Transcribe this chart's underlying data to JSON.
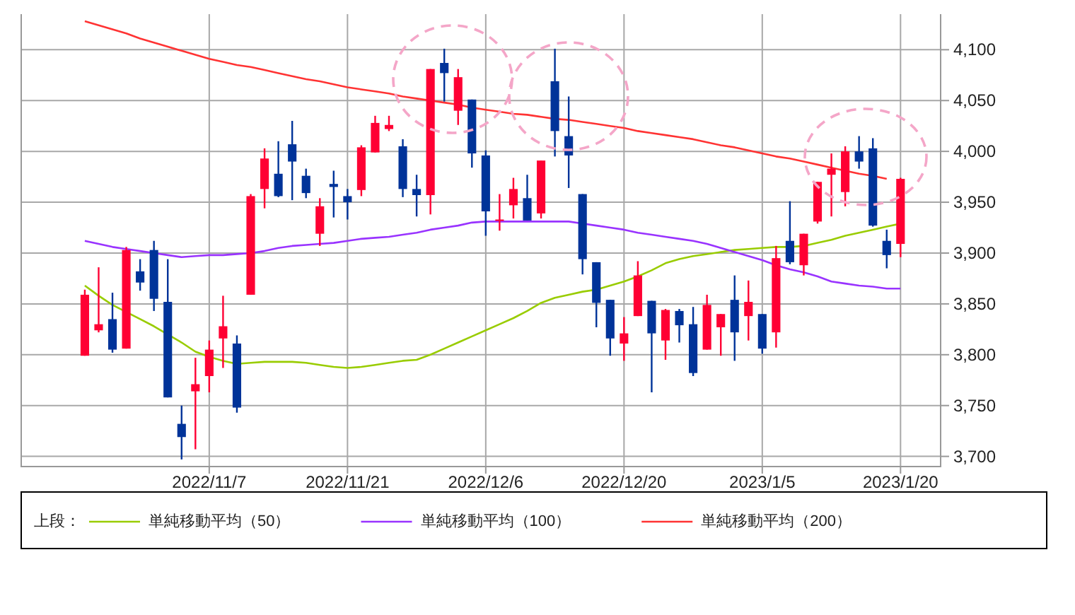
{
  "chart_data": {
    "type": "candlestick",
    "categories": [
      null,
      null,
      null,
      null,
      null,
      null,
      null,
      null,
      null,
      "2022/11/7",
      null,
      null,
      null,
      null,
      null,
      null,
      null,
      null,
      null,
      "2022/11/21",
      null,
      null,
      null,
      null,
      null,
      null,
      null,
      null,
      null,
      "2022/12/6",
      null,
      null,
      null,
      null,
      null,
      null,
      null,
      null,
      null,
      "2022/12/20",
      null,
      null,
      null,
      null,
      null,
      null,
      null,
      null,
      null,
      "2023/1/5",
      null,
      null,
      null,
      null,
      null,
      null,
      null,
      null,
      null,
      "2023/1/20"
    ],
    "ohlc": [
      [
        3799,
        3864,
        3799,
        3859
      ],
      [
        3824,
        3886,
        3822,
        3830
      ],
      [
        3835,
        3861,
        3802,
        3805
      ],
      [
        3806,
        3906,
        3806,
        3903
      ],
      [
        3882,
        3894,
        3863,
        3871
      ],
      [
        3903,
        3912,
        3843,
        3855
      ],
      [
        3852,
        3894,
        3758,
        3758
      ],
      [
        3732,
        3750,
        3697,
        3719
      ],
      [
        3764,
        3797,
        3707,
        3771
      ],
      [
        3779,
        3814,
        3763,
        3805
      ],
      [
        3816,
        3858,
        3787,
        3828
      ],
      [
        3811,
        3819,
        3743,
        3748
      ],
      [
        3859,
        3958,
        3859,
        3956
      ],
      [
        3963,
        4003,
        3944,
        3993
      ],
      [
        3978,
        4010,
        3955,
        3956
      ],
      [
        4007,
        4030,
        3952,
        3990
      ],
      [
        3976,
        3983,
        3954,
        3959
      ],
      [
        3919,
        3954,
        3907,
        3946
      ],
      [
        3968,
        3981,
        3935,
        3965
      ],
      [
        3956,
        3963,
        3933,
        3950
      ],
      [
        3962,
        4006,
        3956,
        4004
      ],
      [
        3999,
        4035,
        3999,
        4028
      ],
      [
        4022,
        4035,
        4020,
        4026
      ],
      [
        4005,
        4012,
        3955,
        3963
      ],
      [
        3963,
        3977,
        3936,
        3957
      ],
      [
        3957,
        4081,
        3938,
        4081
      ],
      [
        4087,
        4101,
        4049,
        4077
      ],
      [
        4040,
        4081,
        4026,
        4073
      ],
      [
        4051,
        4051,
        3984,
        3998
      ],
      [
        3996,
        4001,
        3917,
        3941
      ],
      [
        3932,
        3958,
        3922,
        3933
      ],
      [
        3947,
        3974,
        3934,
        3963
      ],
      [
        3954,
        3977,
        3932,
        3932
      ],
      [
        3939,
        3991,
        3934,
        3991
      ],
      [
        4069,
        4101,
        3995,
        4020
      ],
      [
        4015,
        4054,
        3964,
        3996
      ],
      [
        3958,
        3958,
        3879,
        3894
      ],
      [
        3891,
        3891,
        3827,
        3851
      ],
      [
        3854,
        3854,
        3799,
        3816
      ],
      [
        3811,
        3837,
        3794,
        3821
      ],
      [
        3838,
        3892,
        3838,
        3878
      ],
      [
        3853,
        3853,
        3763,
        3821
      ],
      [
        3814,
        3845,
        3795,
        3844
      ],
      [
        3843,
        3845,
        3812,
        3829
      ],
      [
        3830,
        3847,
        3779,
        3782
      ],
      [
        3805,
        3859,
        3805,
        3849
      ],
      [
        3827,
        3840,
        3799,
        3840
      ],
      [
        3854,
        3878,
        3794,
        3822
      ],
      [
        3838,
        3873,
        3814,
        3852
      ],
      [
        3840,
        3840,
        3801,
        3806
      ],
      [
        3822,
        3907,
        3807,
        3895
      ],
      [
        3912,
        3951,
        3889,
        3891
      ],
      [
        3888,
        3919,
        3878,
        3919
      ],
      [
        3931,
        3970,
        3929,
        3970
      ],
      [
        3977,
        3998,
        3936,
        3983
      ],
      [
        3960,
        4005,
        3946,
        4000
      ],
      [
        4000,
        4015,
        3983,
        3990
      ],
      [
        4003,
        4013,
        3926,
        3927
      ],
      [
        3912,
        3923,
        3885,
        3898
      ],
      [
        3909,
        3974,
        3896,
        3973
      ]
    ],
    "colors": [
      "#ff0033",
      "#ff0033",
      "#003399",
      "#ff0033",
      "#003399",
      "#003399",
      "#003399",
      "#003399",
      "#ff0033",
      "#ff0033",
      "#ff0033",
      "#003399",
      "#ff0033",
      "#ff0033",
      "#003399",
      "#003399",
      "#003399",
      "#ff0033",
      "#003399",
      "#003399",
      "#ff0033",
      "#ff0033",
      "#ff0033",
      "#003399",
      "#003399",
      "#ff0033",
      "#003399",
      "#ff0033",
      "#003399",
      "#003399",
      "#ff0033",
      "#ff0033",
      "#003399",
      "#ff0033",
      "#003399",
      "#003399",
      "#003399",
      "#003399",
      "#003399",
      "#ff0033",
      "#ff0033",
      "#003399",
      "#ff0033",
      "#003399",
      "#003399",
      "#ff0033",
      "#ff0033",
      "#003399",
      "#ff0033",
      "#003399",
      "#ff0033",
      "#003399",
      "#ff0033",
      "#ff0033",
      "#ff0033",
      "#ff0033",
      "#003399",
      "#003399",
      "#003399",
      "#ff0033"
    ],
    "series": [
      {
        "type": "line",
        "name": "単純移動平均（50）",
        "color": "#99cc00",
        "values": [
          3868,
          3858,
          3849,
          3842,
          3835,
          3828,
          3820,
          3812,
          3803,
          3798,
          3794,
          3791,
          3792,
          3793,
          3793,
          3793,
          3792,
          3790,
          3788,
          3787,
          3788,
          3790,
          3792,
          3794,
          3795,
          3800,
          3806,
          3812,
          3818,
          3824,
          3830,
          3836,
          3843,
          3851,
          3856,
          3859,
          3862,
          3864,
          3868,
          3872,
          3877,
          3883,
          3890,
          3894,
          3897,
          3899,
          3901,
          3903,
          3904,
          3905,
          3906,
          3906,
          3907,
          3910,
          3913,
          3917,
          3920,
          3923,
          3926,
          3929
        ]
      },
      {
        "type": "line",
        "name": "単純移動平均（100）",
        "color": "#9933ff",
        "values": [
          3912,
          3909,
          3906,
          3904,
          3902,
          3900,
          3898,
          3896,
          3897,
          3898,
          3898,
          3899,
          3900,
          3902,
          3905,
          3907,
          3908,
          3909,
          3910,
          3912,
          3914,
          3915,
          3916,
          3918,
          3920,
          3923,
          3925,
          3927,
          3930,
          3931,
          3931,
          3931,
          3931,
          3931,
          3931,
          3931,
          3929,
          3927,
          3925,
          3923,
          3920,
          3918,
          3916,
          3914,
          3912,
          3909,
          3905,
          3901,
          3897,
          3893,
          3888,
          3884,
          3881,
          3877,
          3872,
          3870,
          3868,
          3867,
          3865,
          3865
        ]
      },
      {
        "type": "line",
        "name": "単純移動平均（200）",
        "color": "#ff3333",
        "values": [
          4128,
          4124,
          4120,
          4116,
          4111,
          4107,
          4103,
          4099,
          4095,
          4091,
          4088,
          4085,
          4083,
          4080,
          4077,
          4074,
          4071,
          4069,
          4066,
          4063,
          4061,
          4059,
          4057,
          4054,
          4052,
          4050,
          4048,
          4046,
          4043,
          4041,
          4039,
          4037,
          4036,
          4034,
          4032,
          4031,
          4029,
          4027,
          4025,
          4023,
          4020,
          4018,
          4016,
          4014,
          4012,
          4009,
          4006,
          4004,
          4001,
          3998,
          3995,
          3993,
          3990,
          3987,
          3984,
          3981,
          3978,
          3976,
          3973,
          null
        ]
      }
    ],
    "ylim": [
      3690,
      4135
    ],
    "yticks": [
      {
        "value": 3700,
        "label": "3,700"
      },
      {
        "value": 3750,
        "label": "3,750"
      },
      {
        "value": 3800,
        "label": "3,800"
      },
      {
        "value": 3850,
        "label": "3,850"
      },
      {
        "value": 3900,
        "label": "3,900"
      },
      {
        "value": 3950,
        "label": "3,950"
      },
      {
        "value": 4000,
        "label": "4,000"
      },
      {
        "value": 4050,
        "label": "4,050"
      },
      {
        "value": 4100,
        "label": "4,100"
      }
    ],
    "grid": true,
    "legend": "bottom",
    "legend_title": "上段："
  }
}
